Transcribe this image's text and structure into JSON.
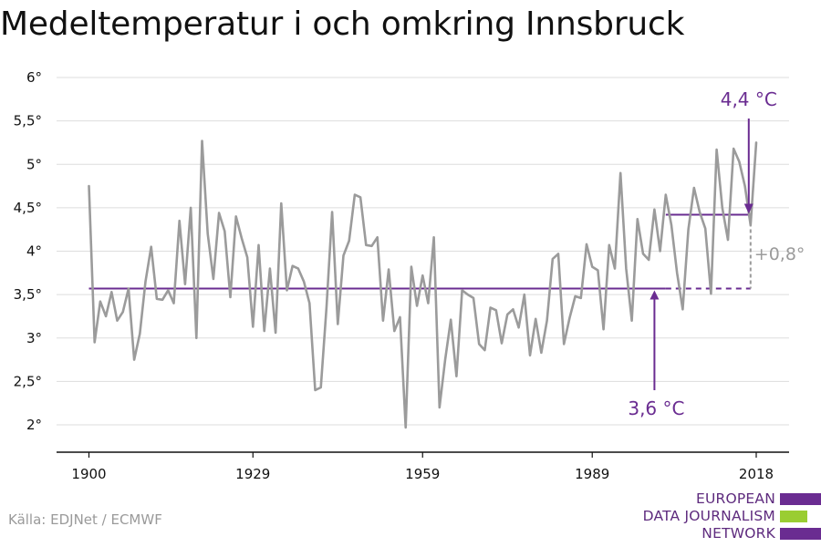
{
  "title": "Medeltemperatur i och omkring Innsbruck",
  "source": "Källa: EDJNet / ECMWF",
  "logo": {
    "lines": [
      "EUROPEAN",
      "DATA JOURNALISM",
      "NETWORK"
    ],
    "colors": [
      "#6a2c91",
      "#9acd32",
      "#6a2c91"
    ]
  },
  "colors": {
    "series": "#9b9b9b",
    "accent": "#6a2c91",
    "grid": "#dddddd",
    "axis": "#111111",
    "difference": "#9b9b9b"
  },
  "chart_data": {
    "type": "line",
    "title": "Medeltemperatur i och omkring Innsbruck",
    "xlabel": "",
    "ylabel": "",
    "xlim": [
      1900,
      2018
    ],
    "ylim": [
      2,
      6
    ],
    "x_ticks": [
      1900,
      1929,
      1959,
      1989,
      2018
    ],
    "y_ticks": [
      {
        "value": 2,
        "label": "2°"
      },
      {
        "value": 2.5,
        "label": "2,5°"
      },
      {
        "value": 3,
        "label": "3°"
      },
      {
        "value": 3.5,
        "label": "3,5°"
      },
      {
        "value": 4,
        "label": "4°"
      },
      {
        "value": 4.5,
        "label": "4,5°"
      },
      {
        "value": 5,
        "label": "5°"
      },
      {
        "value": 5.5,
        "label": "5,5°"
      },
      {
        "value": 6,
        "label": "6°"
      }
    ],
    "grid": true,
    "series": [
      {
        "start_year": 1900,
        "values": [
          4.75,
          2.95,
          3.42,
          3.25,
          3.53,
          3.2,
          3.3,
          3.57,
          2.75,
          3.05,
          3.65,
          4.05,
          3.45,
          3.44,
          3.55,
          3.4,
          4.35,
          3.62,
          4.5,
          3.0,
          5.27,
          4.2,
          3.68,
          4.44,
          4.23,
          3.47,
          4.4,
          4.15,
          3.93,
          3.13,
          4.07,
          3.08,
          3.8,
          3.06,
          4.55,
          3.55,
          3.83,
          3.8,
          3.65,
          3.4,
          2.4,
          2.43,
          3.35,
          4.45,
          3.16,
          3.95,
          4.12,
          4.65,
          4.62,
          4.07,
          4.06,
          4.16,
          3.2,
          3.79,
          3.08,
          3.24,
          1.97,
          3.82,
          3.37,
          3.72,
          3.4,
          4.16,
          2.2,
          2.75,
          3.21,
          2.56,
          3.55,
          3.5,
          3.46,
          2.93,
          2.86,
          3.35,
          3.32,
          2.94,
          3.27,
          3.33,
          3.12,
          3.5,
          2.8,
          3.22,
          2.83,
          3.2,
          3.91,
          3.97,
          2.93,
          3.23,
          3.48,
          3.46,
          4.08,
          3.82,
          3.78,
          3.1,
          4.07,
          3.8,
          4.9,
          3.8,
          3.2,
          4.37,
          3.97,
          3.9,
          4.48,
          4.0,
          4.65,
          4.3,
          3.75,
          3.33,
          4.25,
          4.73,
          4.45,
          4.26,
          3.51,
          5.17,
          4.5,
          4.13,
          5.18,
          5.03,
          4.75,
          4.3,
          5.25
        ]
      }
    ],
    "reference_lines": [
      {
        "label": "3,6 °C",
        "value": 3.57,
        "from": 1900,
        "to": 2002,
        "extended_to": 2017,
        "style": "solid-then-dashed"
      },
      {
        "label": "4,4 °C",
        "value": 4.42,
        "from": 2002,
        "to": 2017
      }
    ],
    "difference": {
      "label": "+0,8°",
      "year": 2017
    }
  }
}
